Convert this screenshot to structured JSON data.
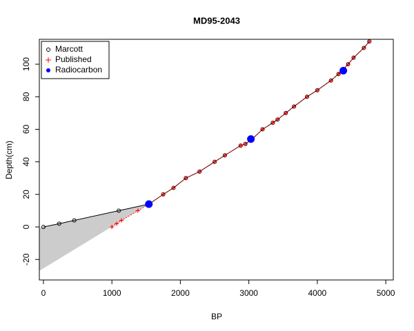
{
  "chart_data": {
    "type": "scatter",
    "title": "MD95-2043",
    "x_label": "BP",
    "y_label": "Depth(cm)",
    "xlim": [
      -60,
      5110
    ],
    "ylim": [
      -32.6,
      115.3
    ],
    "xticks": [
      0,
      1000,
      2000,
      3000,
      4000,
      5000
    ],
    "yticks": [
      -20,
      0,
      20,
      40,
      60,
      80,
      100
    ],
    "legend": "top-left",
    "band": {
      "color": "#cccccc",
      "x": [
        -60,
        0,
        1100,
        1540,
        -60
      ],
      "values": [
        -0.5,
        0,
        10,
        14,
        -27
      ]
    },
    "series": [
      {
        "name": "Marcott",
        "color": "#000000",
        "marker": "open-circle",
        "line": "solid",
        "x": [
          0,
          230,
          450,
          1100,
          1540,
          1750,
          1900,
          2080,
          2280,
          2500,
          2650,
          2880,
          2950,
          3050,
          3200,
          3350,
          3420,
          3540,
          3660,
          3850,
          4000,
          4200,
          4310,
          4360,
          4450,
          4530,
          4680,
          4760
        ],
        "values": [
          0,
          2,
          4,
          10,
          14,
          20,
          24,
          30,
          34,
          40,
          44,
          50,
          51,
          54,
          60,
          64,
          66,
          70,
          74,
          80,
          84,
          90,
          94,
          96,
          100,
          104,
          110,
          114
        ]
      },
      {
        "name": "Published",
        "color": "#ff0000",
        "marker": "plus",
        "line": "dotted",
        "x": [
          1000,
          1070,
          1140,
          1380,
          1540,
          1750,
          1900,
          2080,
          2280,
          2500,
          2650,
          2880,
          2950,
          3050,
          3200,
          3350,
          3420,
          3540,
          3660,
          3850,
          4000,
          4200,
          4310,
          4360,
          4450,
          4530,
          4680,
          4760
        ],
        "values": [
          0,
          2,
          4,
          10,
          14,
          20,
          24,
          30,
          34,
          40,
          44,
          50,
          51,
          54,
          60,
          64,
          66,
          70,
          74,
          80,
          84,
          90,
          94,
          96,
          100,
          104,
          110,
          114
        ]
      },
      {
        "name": "Radiocarbon",
        "color": "#0000ff",
        "marker": "filled-circle",
        "line": "none",
        "x": [
          1540,
          3030,
          4380
        ],
        "values": [
          14,
          54,
          96
        ]
      }
    ]
  }
}
